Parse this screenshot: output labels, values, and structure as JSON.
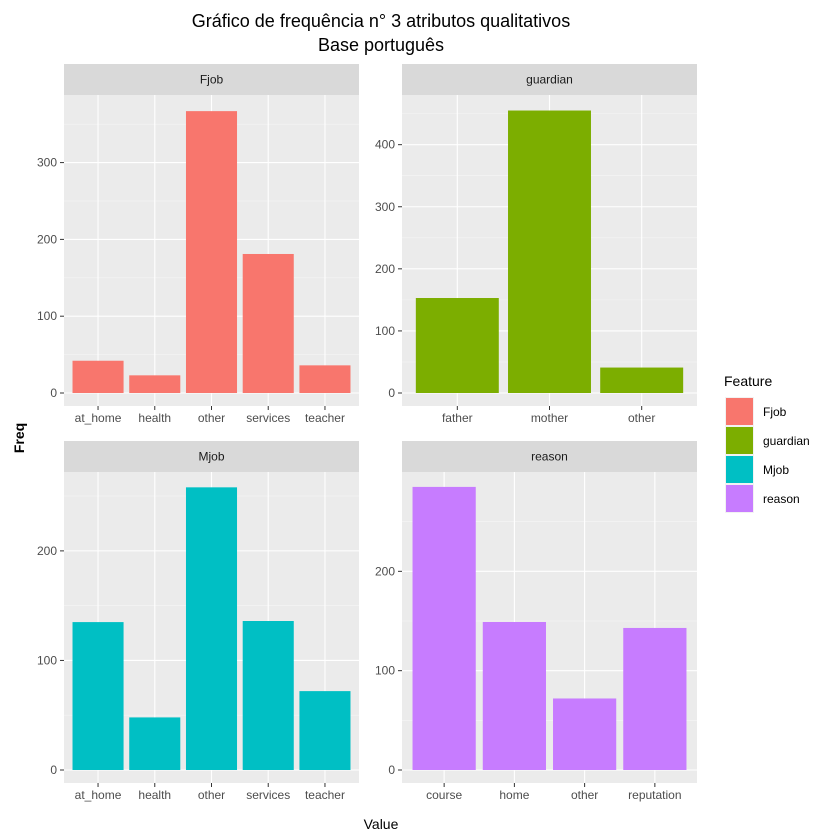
{
  "chart_data": {
    "type": "bar",
    "title": "Gráfico de frequência n° 3 atributos qualitativos",
    "subtitle": "Base português",
    "xlabel": "Value",
    "ylabel": "Freq",
    "legend": {
      "title": "Feature",
      "position": "right",
      "items": [
        {
          "label": "Fjob",
          "color": "#F8766D"
        },
        {
          "label": "guardian",
          "color": "#7CAE00"
        },
        {
          "label": "Mjob",
          "color": "#00BFC4"
        },
        {
          "label": "reason",
          "color": "#C77CFF"
        }
      ]
    },
    "grid": true,
    "facets": [
      {
        "name": "Fjob",
        "color": "#F8766D",
        "categories": [
          "at_home",
          "health",
          "other",
          "services",
          "teacher"
        ],
        "values": [
          42,
          23,
          367,
          181,
          36
        ],
        "ylim": [
          0,
          388
        ],
        "yticks": [
          0,
          100,
          200,
          300
        ]
      },
      {
        "name": "guardian",
        "color": "#7CAE00",
        "categories": [
          "father",
          "mother",
          "other"
        ],
        "values": [
          153,
          455,
          41
        ],
        "ylim": [
          0,
          480
        ],
        "yticks": [
          0,
          100,
          200,
          300,
          400
        ]
      },
      {
        "name": "Mjob",
        "color": "#00BFC4",
        "categories": [
          "at_home",
          "health",
          "other",
          "services",
          "teacher"
        ],
        "values": [
          135,
          48,
          258,
          136,
          72
        ],
        "ylim": [
          0,
          272
        ],
        "yticks": [
          0,
          100,
          200
        ]
      },
      {
        "name": "reason",
        "color": "#C77CFF",
        "categories": [
          "course",
          "home",
          "other",
          "reputation"
        ],
        "values": [
          285,
          149,
          72,
          143
        ],
        "ylim": [
          0,
          300
        ],
        "yticks": [
          0,
          100,
          200
        ]
      }
    ]
  }
}
